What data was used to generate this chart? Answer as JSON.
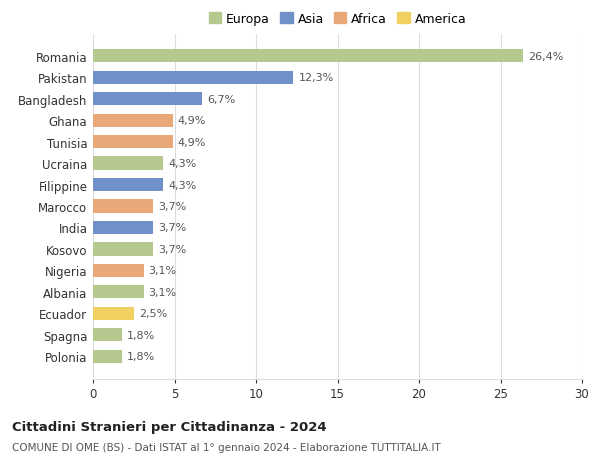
{
  "categories": [
    "Polonia",
    "Spagna",
    "Ecuador",
    "Albania",
    "Nigeria",
    "Kosovo",
    "India",
    "Marocco",
    "Filippine",
    "Ucraina",
    "Tunisia",
    "Ghana",
    "Bangladesh",
    "Pakistan",
    "Romania"
  ],
  "values": [
    1.8,
    1.8,
    2.5,
    3.1,
    3.1,
    3.7,
    3.7,
    3.7,
    4.3,
    4.3,
    4.9,
    4.9,
    6.7,
    12.3,
    26.4
  ],
  "labels": [
    "1,8%",
    "1,8%",
    "2,5%",
    "3,1%",
    "3,1%",
    "3,7%",
    "3,7%",
    "3,7%",
    "4,3%",
    "4,3%",
    "4,9%",
    "4,9%",
    "6,7%",
    "12,3%",
    "26,4%"
  ],
  "colors": [
    "#b5c98e",
    "#b5c98e",
    "#f0d060",
    "#b5c98e",
    "#e8a878",
    "#b5c98e",
    "#7090c8",
    "#e8a878",
    "#7090c8",
    "#b5c98e",
    "#e8a878",
    "#e8a878",
    "#7090c8",
    "#7090c8",
    "#b5c98e"
  ],
  "continent": [
    "Europa",
    "Europa",
    "America",
    "Europa",
    "Africa",
    "Europa",
    "Asia",
    "Africa",
    "Asia",
    "Europa",
    "Africa",
    "Africa",
    "Asia",
    "Asia",
    "Europa"
  ],
  "legend_labels": [
    "Europa",
    "Asia",
    "Africa",
    "America"
  ],
  "legend_colors": [
    "#b5c98e",
    "#7090c8",
    "#e8a878",
    "#f0d060"
  ],
  "title1": "Cittadini Stranieri per Cittadinanza - 2024",
  "title2": "COMUNE DI OME (BS) - Dati ISTAT al 1° gennaio 2024 - Elaborazione TUTTITALIA.IT",
  "xlim": [
    0,
    30
  ],
  "xticks": [
    0,
    5,
    10,
    15,
    20,
    25,
    30
  ],
  "background_color": "#ffffff",
  "grid_color": "#dddddd"
}
